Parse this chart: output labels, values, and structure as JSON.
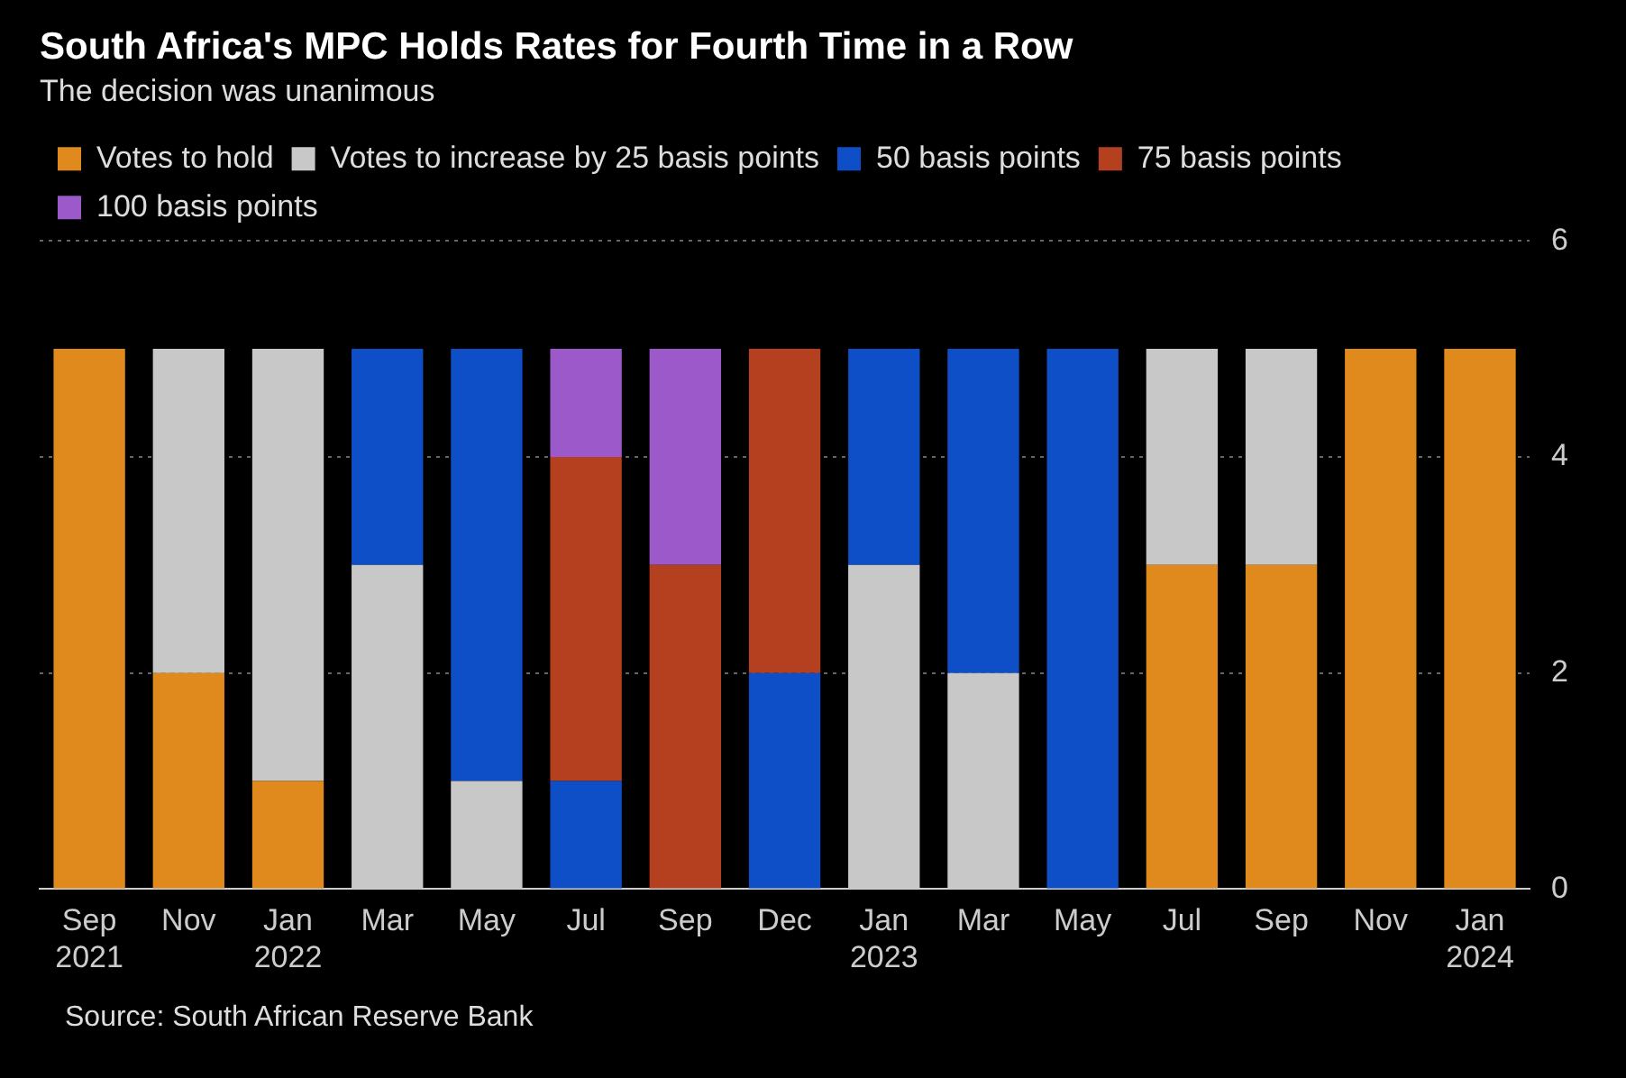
{
  "chart_data": {
    "type": "bar",
    "title": "South Africa's MPC Holds Rates for Fourth Time in a Row",
    "subtitle": "The decision was unanimous",
    "categories": [
      "Sep\n2021",
      "Nov",
      "Jan\n2022",
      "Mar",
      "May",
      "Jul",
      "Sep",
      "Dec",
      "Jan\n2023",
      "Mar",
      "May",
      "Jul",
      "Sep",
      "Nov",
      "Jan\n2024"
    ],
    "stacked": true,
    "series": [
      {
        "name": "Votes to hold",
        "color": "#e08a1e",
        "values": [
          5,
          2,
          1,
          0,
          0,
          0,
          0,
          0,
          0,
          0,
          0,
          3,
          3,
          5,
          5
        ]
      },
      {
        "name": "Votes to increase by 25 basis points",
        "color": "#c8c8c8",
        "values": [
          0,
          3,
          4,
          3,
          1,
          0,
          0,
          0,
          3,
          2,
          0,
          2,
          2,
          0,
          0
        ]
      },
      {
        "name": "50 basis points",
        "color": "#0e4fc7",
        "values": [
          0,
          0,
          0,
          2,
          4,
          1,
          0,
          2,
          2,
          3,
          5,
          0,
          0,
          0,
          0
        ]
      },
      {
        "name": "75 basis points",
        "color": "#b5401f",
        "values": [
          0,
          0,
          0,
          0,
          0,
          3,
          3,
          3,
          0,
          0,
          0,
          0,
          0,
          0,
          0
        ]
      },
      {
        "name": "100 basis points",
        "color": "#9b59c9",
        "values": [
          0,
          0,
          0,
          0,
          0,
          1,
          2,
          0,
          0,
          0,
          0,
          0,
          0,
          0,
          0
        ]
      }
    ],
    "ylim": [
      0,
      6
    ],
    "yticks": [
      0,
      2,
      4,
      6
    ],
    "grid": "y",
    "legend": "top",
    "annotations": [
      "Source: South African Reserve Bank"
    ]
  }
}
